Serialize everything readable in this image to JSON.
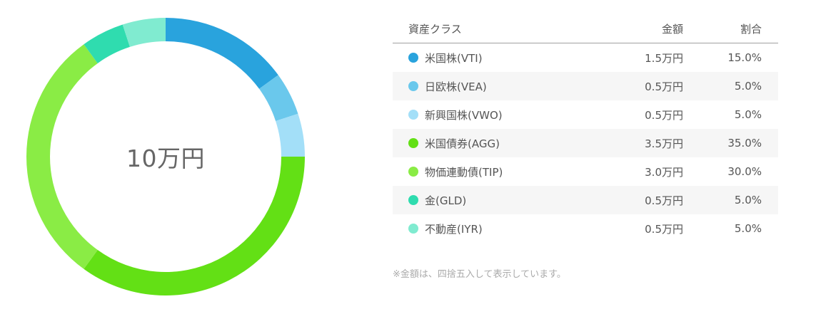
{
  "chart_data": {
    "type": "pie",
    "subtype": "donut",
    "title": "",
    "center_label": "10万円",
    "total": "10万円",
    "categories": [
      "米国株(VTI)",
      "日欧株(VEA)",
      "新興国株(VWO)",
      "米国債券(AGG)",
      "物価連動債(TIP)",
      "金(GLD)",
      "不動産(IYR)"
    ],
    "values": [
      15.0,
      5.0,
      5.0,
      35.0,
      30.0,
      5.0,
      5.0
    ],
    "amounts": [
      "1.5万円",
      "0.5万円",
      "0.5万円",
      "3.5万円",
      "3.0万円",
      "0.5万円",
      "0.5万円"
    ],
    "colors": [
      "#29a3dd",
      "#6ac8ec",
      "#a3dff8",
      "#63e015",
      "#8aec45",
      "#2fdcaf",
      "#80ebd0"
    ],
    "start_angle_deg": 0,
    "direction": "clockwise",
    "legend_position": "right (table)"
  },
  "table": {
    "headers": {
      "name": "資産クラス",
      "amount": "金額",
      "ratio": "割合"
    },
    "rows": [
      {
        "name": "米国株(VTI)",
        "amount": "1.5万円",
        "ratio": "15.0%",
        "color": "#29a3dd"
      },
      {
        "name": "日欧株(VEA)",
        "amount": "0.5万円",
        "ratio": "5.0%",
        "color": "#6ac8ec"
      },
      {
        "name": "新興国株(VWO)",
        "amount": "0.5万円",
        "ratio": "5.0%",
        "color": "#a3dff8"
      },
      {
        "name": "米国債券(AGG)",
        "amount": "3.5万円",
        "ratio": "35.0%",
        "color": "#63e015"
      },
      {
        "name": "物価連動債(TIP)",
        "amount": "3.0万円",
        "ratio": "30.0%",
        "color": "#8aec45"
      },
      {
        "name": "金(GLD)",
        "amount": "0.5万円",
        "ratio": "5.0%",
        "color": "#2fdcaf"
      },
      {
        "name": "不動産(IYR)",
        "amount": "0.5万円",
        "ratio": "5.0%",
        "color": "#80ebd0"
      }
    ]
  },
  "note": "※金額は、四捨五入して表示しています。"
}
